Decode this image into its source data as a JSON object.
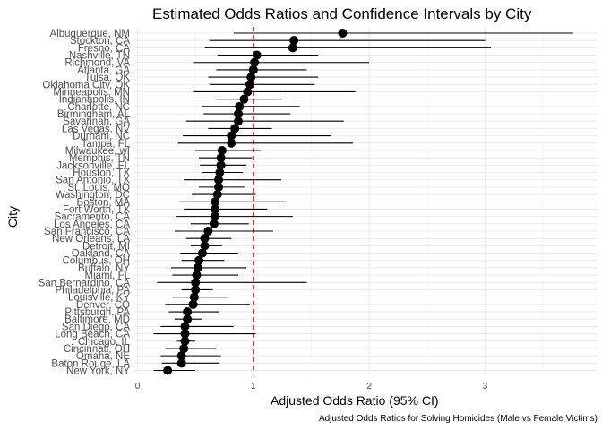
{
  "chart_data": {
    "type": "scatter",
    "title": "Estimated Odds Ratios and Confidence Intervals by City",
    "xlabel": "Adjusted Odds Ratio (95% CI)",
    "ylabel": "City",
    "caption": "Adjusted Odds Ratios for Solving Homicides (Male vs Female Victims)",
    "xlim": [
      -0.02,
      3.9
    ],
    "xticks": [
      0,
      1,
      2,
      3
    ],
    "reference_line": {
      "x": 1,
      "color": "#ff0000",
      "style": "dashed"
    },
    "grid": true,
    "colors": {
      "point": "#000000",
      "errorbar": "#000000",
      "grid": "#ebebeb"
    },
    "cities": [
      {
        "city": "Albuquerque, NM",
        "or": 1.77,
        "lo": 0.83,
        "hi": 3.76
      },
      {
        "city": "Stockton, CA",
        "or": 1.35,
        "lo": 0.62,
        "hi": 3.0
      },
      {
        "city": "Fresno, CA",
        "or": 1.34,
        "lo": 0.58,
        "hi": 3.05
      },
      {
        "city": "Nashville, TN",
        "or": 1.03,
        "lo": 0.69,
        "hi": 1.56
      },
      {
        "city": "Richmond, VA",
        "or": 1.01,
        "lo": 0.48,
        "hi": 2.0
      },
      {
        "city": "Atlanta, GA",
        "or": 1.0,
        "lo": 0.68,
        "hi": 1.46
      },
      {
        "city": "Tulsa, OK",
        "or": 0.98,
        "lo": 0.61,
        "hi": 1.56
      },
      {
        "city": "Oklahoma City, OK",
        "or": 0.97,
        "lo": 0.62,
        "hi": 1.52
      },
      {
        "city": "Minneapolis, MN",
        "or": 0.95,
        "lo": 0.48,
        "hi": 1.88
      },
      {
        "city": "Indianapolis, IN",
        "or": 0.92,
        "lo": 0.68,
        "hi": 1.24
      },
      {
        "city": "Charlotte, NC",
        "or": 0.88,
        "lo": 0.56,
        "hi": 1.4
      },
      {
        "city": "Birmingham, AL",
        "or": 0.87,
        "lo": 0.57,
        "hi": 1.32
      },
      {
        "city": "Savannah, GA",
        "or": 0.87,
        "lo": 0.42,
        "hi": 1.78
      },
      {
        "city": "Las Vegas, NV",
        "or": 0.84,
        "lo": 0.61,
        "hi": 1.16
      },
      {
        "city": "Durham, NC",
        "or": 0.81,
        "lo": 0.39,
        "hi": 1.67
      },
      {
        "city": "Tampa, FL",
        "or": 0.81,
        "lo": 0.35,
        "hi": 1.86
      },
      {
        "city": "Milwaukee, wI",
        "or": 0.73,
        "lo": 0.5,
        "hi": 1.06
      },
      {
        "city": "Memphis, TN",
        "or": 0.72,
        "lo": 0.53,
        "hi": 0.99
      },
      {
        "city": "Jacksonville, FL",
        "or": 0.72,
        "lo": 0.54,
        "hi": 0.94
      },
      {
        "city": "Houston, TX",
        "or": 0.71,
        "lo": 0.56,
        "hi": 0.91
      },
      {
        "city": "San Antonio, TX",
        "or": 0.7,
        "lo": 0.4,
        "hi": 1.24
      },
      {
        "city": "St. Louis, MO",
        "or": 0.7,
        "lo": 0.53,
        "hi": 0.93
      },
      {
        "city": "Washington, DC",
        "or": 0.69,
        "lo": 0.47,
        "hi": 1.02
      },
      {
        "city": "Boston, MA",
        "or": 0.67,
        "lo": 0.36,
        "hi": 1.28
      },
      {
        "city": "Fort Worth, TX",
        "or": 0.67,
        "lo": 0.4,
        "hi": 1.12
      },
      {
        "city": "Sacramento, CA",
        "or": 0.67,
        "lo": 0.33,
        "hi": 1.34
      },
      {
        "city": "Los Angeles, CA",
        "or": 0.66,
        "lo": 0.46,
        "hi": 0.96
      },
      {
        "city": "San Francisco, CA",
        "or": 0.61,
        "lo": 0.32,
        "hi": 1.17
      },
      {
        "city": "New Orleans, LA",
        "or": 0.58,
        "lo": 0.42,
        "hi": 0.81
      },
      {
        "city": "Detroit, MI",
        "or": 0.58,
        "lo": 0.46,
        "hi": 0.73
      },
      {
        "city": "Oakland, CA",
        "or": 0.56,
        "lo": 0.37,
        "hi": 0.87
      },
      {
        "city": "Columbus, OH",
        "or": 0.53,
        "lo": 0.38,
        "hi": 0.75
      },
      {
        "city": "Buffalo, NY",
        "or": 0.52,
        "lo": 0.29,
        "hi": 0.94
      },
      {
        "city": "Miami, FL",
        "or": 0.51,
        "lo": 0.3,
        "hi": 0.87
      },
      {
        "city": "San Bernardino, CA",
        "or": 0.5,
        "lo": 0.17,
        "hi": 1.46
      },
      {
        "city": "Philadelphia, PA",
        "or": 0.5,
        "lo": 0.38,
        "hi": 0.65
      },
      {
        "city": "Louisville, KY",
        "or": 0.49,
        "lo": 0.3,
        "hi": 0.79
      },
      {
        "city": "Denver, CO",
        "or": 0.48,
        "lo": 0.24,
        "hi": 0.97
      },
      {
        "city": "Pittsburgh, PA",
        "or": 0.43,
        "lo": 0.27,
        "hi": 0.7
      },
      {
        "city": "Baltimore, MD",
        "or": 0.43,
        "lo": 0.32,
        "hi": 0.56
      },
      {
        "city": "San Diego, CA",
        "or": 0.41,
        "lo": 0.2,
        "hi": 0.83
      },
      {
        "city": "Long Beach, CA",
        "or": 0.41,
        "lo": 0.14,
        "hi": 1.02
      },
      {
        "city": "Chicago, IL",
        "or": 0.41,
        "lo": 0.34,
        "hi": 0.5
      },
      {
        "city": "Cincinnati, OH",
        "or": 0.4,
        "lo": 0.24,
        "hi": 0.68
      },
      {
        "city": "Omaha, NE",
        "or": 0.38,
        "lo": 0.2,
        "hi": 0.72
      },
      {
        "city": "Baton Rouge, LA",
        "or": 0.38,
        "lo": 0.21,
        "hi": 0.7
      },
      {
        "city": "New York, NY",
        "or": 0.26,
        "lo": 0.14,
        "hi": 0.5
      }
    ]
  }
}
